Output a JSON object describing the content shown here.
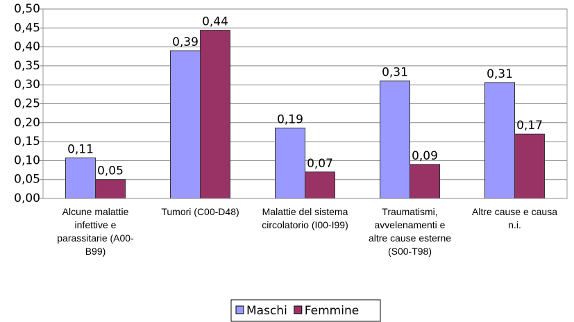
{
  "chart_data": {
    "type": "bar",
    "categories": [
      "Alcune malattie infettive e parassitarie (A00-B99)",
      "Tumori (C00-D48)",
      "Malattie del sistema circolatorio (I00-I99)",
      "Traumatismi, avvelenamenti e altre cause esterne (S00-T98)",
      "Altre cause e causa n.i."
    ],
    "series": [
      {
        "name": "Maschi",
        "color": "#9999ff",
        "values": [
          0.107,
          0.39,
          0.186,
          0.31,
          0.306
        ],
        "value_labels": [
          "0,11",
          "0,39",
          "0,19",
          "0,31",
          "0,31"
        ]
      },
      {
        "name": "Femmine",
        "color": "#993366",
        "values": [
          0.05,
          0.444,
          0.07,
          0.09,
          0.17
        ],
        "value_labels": [
          "0,05",
          "0,44",
          "0,07",
          "0,09",
          "0,17"
        ]
      }
    ],
    "ylim": [
      0,
      0.5
    ],
    "yticks": [
      {
        "value": 0,
        "label": "0,00"
      },
      {
        "value": 0.05,
        "label": "0,05"
      },
      {
        "value": 0.1,
        "label": "0,10"
      },
      {
        "value": 0.15,
        "label": "0,15"
      },
      {
        "value": 0.2,
        "label": "0,20"
      },
      {
        "value": 0.25,
        "label": "0,25"
      },
      {
        "value": 0.3,
        "label": "0,30"
      },
      {
        "value": 0.35,
        "label": "0,35"
      },
      {
        "value": 0.4,
        "label": "0,40"
      },
      {
        "value": 0.45,
        "label": "0,45"
      },
      {
        "value": 0.5,
        "label": "0,50"
      }
    ],
    "grid": true,
    "legend": "bottom"
  }
}
